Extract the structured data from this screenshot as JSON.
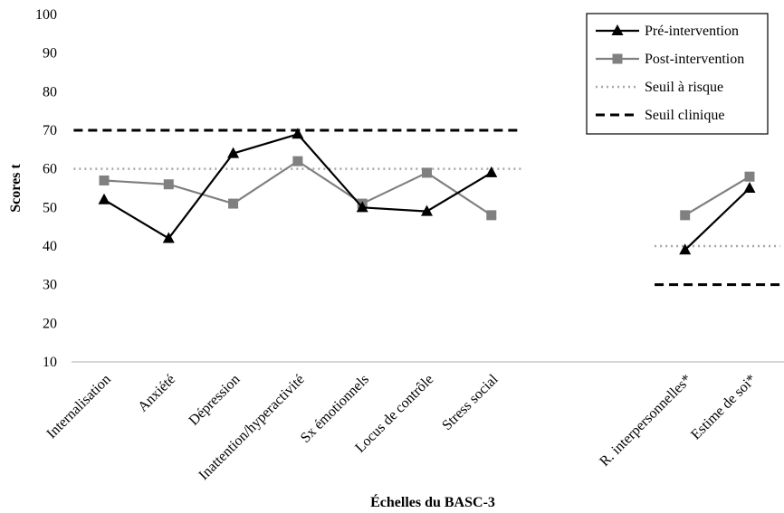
{
  "chart_data": {
    "type": "line",
    "title": "",
    "xlabel": "Échelles du BASC-3",
    "ylabel": "Scores t",
    "ylim": [
      10,
      100
    ],
    "yticks": [
      10,
      20,
      30,
      40,
      50,
      60,
      70,
      80,
      90,
      100
    ],
    "grid": false,
    "legend_position": "top-right",
    "categories": [
      "Internalisation",
      "Anxiété",
      "Dépression",
      "Inattention/hyperactivité",
      "Sx émotionnels",
      "Locus de contrôle",
      "Stress social",
      "",
      "",
      "R. interpersonnelles*",
      "Estime de soi*"
    ],
    "series": [
      {
        "name": "Pré-intervention",
        "color": "#000000",
        "marker": "triangle",
        "style": "solid",
        "values": [
          52,
          42,
          64,
          69,
          50,
          49,
          59,
          null,
          null,
          39,
          55
        ]
      },
      {
        "name": "Post-intervention",
        "color": "#808080",
        "marker": "square",
        "style": "solid",
        "values": [
          57,
          56,
          51,
          62,
          51,
          59,
          48,
          null,
          null,
          48,
          58
        ]
      },
      {
        "name": "Seuil à risque",
        "color": "#a6a6a6",
        "marker": "none",
        "style": "dotted",
        "values": [
          60,
          60,
          60,
          60,
          60,
          60,
          60,
          null,
          null,
          40,
          40
        ]
      },
      {
        "name": "Seuil clinique",
        "color": "#000000",
        "marker": "none",
        "style": "dashed",
        "values": [
          70,
          70,
          70,
          70,
          70,
          70,
          70,
          null,
          null,
          30,
          30
        ]
      }
    ]
  }
}
